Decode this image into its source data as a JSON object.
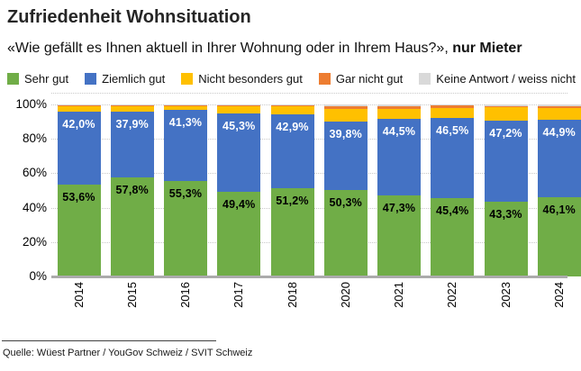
{
  "title": "Zufriedenheit Wohnsituation",
  "subtitle": {
    "normal": "«Wie gefällt es Ihnen aktuell in Ihrer Wohnung oder in Ihrem Haus?», ",
    "bold": "nur Mieter"
  },
  "source": "Quelle: Wüest Partner / YouGov Schweiz / SVIT Schweiz",
  "chart_data": {
    "type": "bar",
    "stacked": true,
    "title": "Zufriedenheit Wohnsituation",
    "legend_position": "top",
    "grid": "dotted-horizontal",
    "ylim": [
      0,
      100
    ],
    "ytick_values": [
      100,
      80,
      60,
      40,
      20,
      0
    ],
    "ytick_labels": [
      "100%",
      "80%",
      "60%",
      "40%",
      "20%",
      "0%"
    ],
    "categories": [
      "2014",
      "2015",
      "2016",
      "2017",
      "2018",
      "2020",
      "2021",
      "2022",
      "2023",
      "2024"
    ],
    "series": [
      {
        "name": "Sehr gut",
        "color": "#70AD47",
        "values": [
          53.6,
          57.8,
          55.3,
          49.4,
          51.2,
          50.3,
          47.3,
          45.4,
          43.3,
          46.1
        ],
        "labels": [
          "53,6%",
          "57,8%",
          "55,3%",
          "49,4%",
          "51,2%",
          "50,3%",
          "47,3%",
          "45,4%",
          "43,3%",
          "46,1%"
        ],
        "label_color": "#000000"
      },
      {
        "name": "Ziemlich gut",
        "color": "#4472C4",
        "values": [
          42.0,
          37.9,
          41.3,
          45.3,
          42.9,
          39.8,
          44.5,
          46.5,
          47.2,
          44.9
        ],
        "labels": [
          "42,0%",
          "37,9%",
          "41,3%",
          "45,3%",
          "42,9%",
          "39,8%",
          "44,5%",
          "46,5%",
          "47,2%",
          "44,9%"
        ],
        "label_color": "#FFFFFF"
      },
      {
        "name": "Nicht besonders gut",
        "color": "#FFC000",
        "values": [
          3.2,
          3.2,
          2.5,
          4.2,
          4.6,
          7.2,
          5.8,
          6.1,
          7.7,
          6.9
        ],
        "labels": null
      },
      {
        "name": "Gar nicht gut",
        "color": "#ED7D31",
        "values": [
          0.8,
          0.8,
          0.6,
          0.8,
          1.0,
          1.7,
          1.4,
          1.5,
          1.0,
          1.1
        ],
        "labels": null
      },
      {
        "name": "Keine Antwort / weiss nicht",
        "color": "#D9D9D9",
        "values": [
          0.4,
          0.3,
          0.3,
          0.3,
          0.3,
          1.0,
          1.0,
          0.5,
          0.8,
          1.0
        ],
        "labels": null
      }
    ]
  }
}
